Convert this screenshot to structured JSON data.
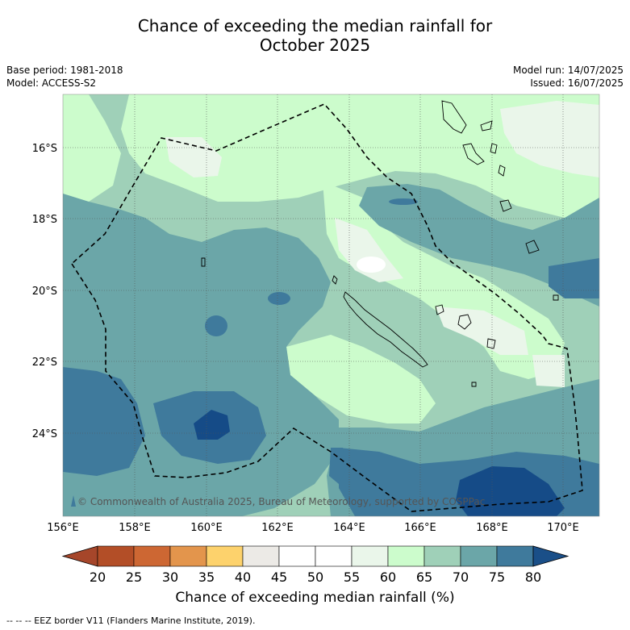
{
  "title": {
    "line1": "Chance of exceeding the median rainfall for",
    "line2": "October 2025"
  },
  "meta_left": {
    "base_period": "Base period: 1981-2018",
    "model": "Model: ACCESS-S2"
  },
  "meta_right": {
    "model_run": "Model run: 14/07/2025",
    "issued": "Issued: 16/07/2025"
  },
  "map": {
    "lat_labels": [
      "16°S",
      "18°S",
      "20°S",
      "22°S",
      "24°S"
    ],
    "lon_labels": [
      "156°E",
      "158°E",
      "160°E",
      "162°E",
      "164°E",
      "166°E",
      "168°E",
      "170°E"
    ],
    "copyright": "© Commonwealth of Australia 2025, Bureau of Meteorology, supported by COSPPac",
    "region_colors": {
      "45-55": "#ffffff",
      "55-60": "#eaf6ea",
      "60-65": "#ccfccc",
      "65-70": "#9fd0b8",
      "70-75": "#6ba6a8",
      "75-80": "#3f7a9c",
      "80+": "#154b87"
    },
    "eez_border_color": "#000000",
    "coastline_color": "#000000"
  },
  "colorbar": {
    "ticks": [
      "20",
      "25",
      "30",
      "35",
      "40",
      "45",
      "50",
      "55",
      "60",
      "65",
      "70",
      "75",
      "80"
    ],
    "colors": [
      "#a6462a",
      "#b34e27",
      "#cd6733",
      "#e3954c",
      "#fdd26c",
      "#eceae6",
      "#ffffff",
      "#ffffff",
      "#eaf6ea",
      "#ccfccc",
      "#9fd0b8",
      "#6ba6a8",
      "#3f7a9c",
      "#1a4f88"
    ],
    "label": "Chance of exceeding median rainfall (%)"
  },
  "footnote": "--  --  -- EEZ border V11 (Flanders Marine Institute, 2019)."
}
